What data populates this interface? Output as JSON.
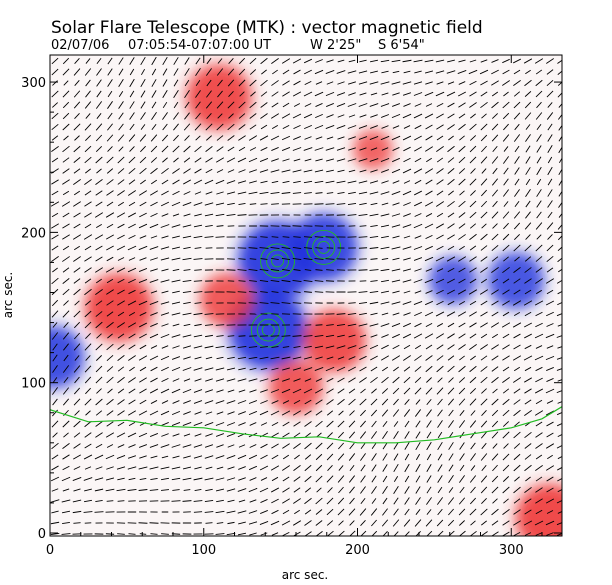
{
  "header": {
    "title": "Solar Flare Telescope (MTK) : vector magnetic field",
    "date": "02/07/06",
    "time_range": "07:05:54-07:07:00 UT",
    "position_w": "W 2'25\"",
    "position_s": "S 6'54\""
  },
  "chart_data": {
    "type": "heatmap",
    "title": "Solar Flare Telescope (MTK) : vector magnetic field",
    "xlabel": "arc sec.",
    "ylabel": "arc sec.",
    "xlim": [
      0,
      333
    ],
    "ylim": [
      -2,
      318
    ],
    "x_ticks": [
      0,
      100,
      200,
      300
    ],
    "y_ticks": [
      0,
      100,
      200,
      300
    ],
    "colors": {
      "positive": "#ee3333",
      "negative": "#2233dd",
      "contour": "#22bb22",
      "vector": "#000000"
    },
    "field_sources": [
      {
        "sign": "negative",
        "x": 148,
        "y": 181,
        "strength": 1.0
      },
      {
        "sign": "negative",
        "x": 178,
        "y": 190,
        "strength": 0.8
      },
      {
        "sign": "negative",
        "x": 142,
        "y": 135,
        "strength": 1.0
      },
      {
        "sign": "negative",
        "x": 262,
        "y": 168,
        "strength": 0.45
      },
      {
        "sign": "negative",
        "x": 303,
        "y": 168,
        "strength": 0.6
      },
      {
        "sign": "negative",
        "x": 2,
        "y": 117,
        "strength": 0.7
      },
      {
        "sign": "positive",
        "x": 45,
        "y": 150,
        "strength": 0.8
      },
      {
        "sign": "positive",
        "x": 110,
        "y": 290,
        "strength": 0.75
      },
      {
        "sign": "positive",
        "x": 185,
        "y": 128,
        "strength": 0.7
      },
      {
        "sign": "positive",
        "x": 115,
        "y": 155,
        "strength": 0.55
      },
      {
        "sign": "positive",
        "x": 160,
        "y": 97,
        "strength": 0.55
      },
      {
        "sign": "positive",
        "x": 210,
        "y": 255,
        "strength": 0.3
      },
      {
        "sign": "positive",
        "x": 325,
        "y": 10,
        "strength": 0.8
      }
    ],
    "neutral_line": [
      [
        0,
        82
      ],
      [
        25,
        74
      ],
      [
        50,
        75
      ],
      [
        75,
        71
      ],
      [
        100,
        70
      ],
      [
        125,
        66
      ],
      [
        150,
        63
      ],
      [
        175,
        64
      ],
      [
        200,
        60
      ],
      [
        225,
        60
      ],
      [
        250,
        62
      ],
      [
        275,
        66
      ],
      [
        300,
        70
      ],
      [
        320,
        76
      ],
      [
        333,
        84
      ]
    ]
  }
}
